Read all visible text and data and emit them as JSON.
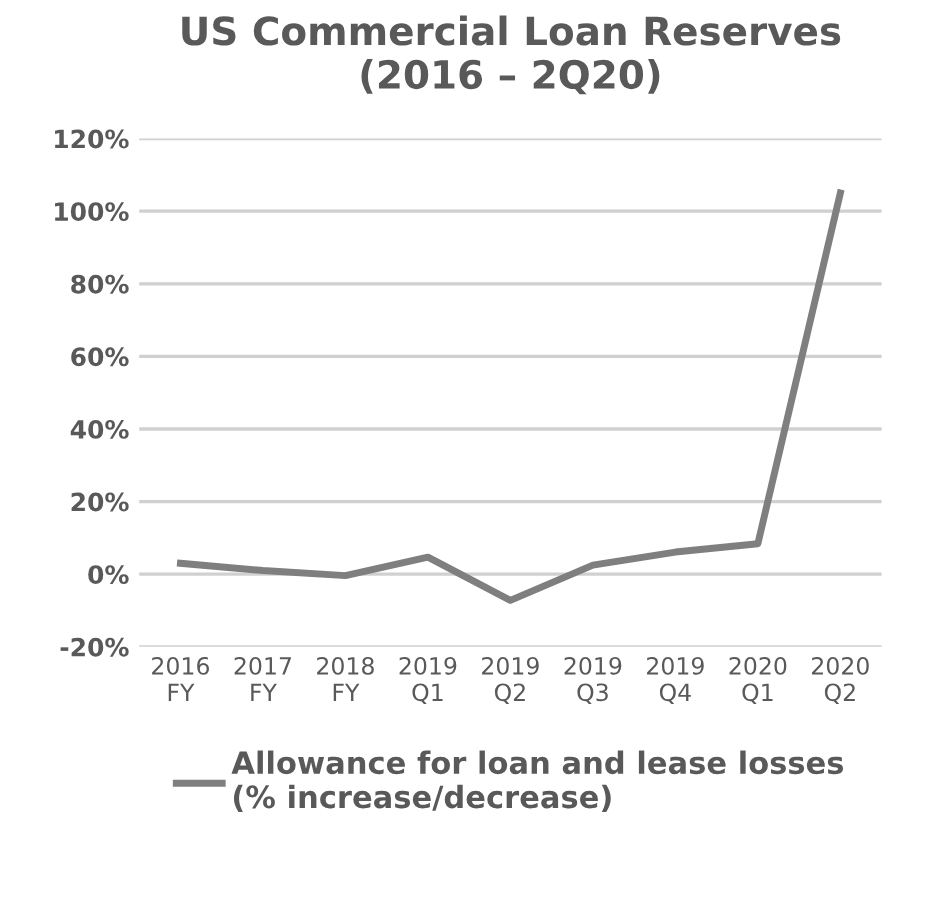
{
  "chart_data": {
    "type": "line",
    "title": "US Commercial Loan Reserves\n(2016 – 2Q20)",
    "categories": [
      "2016\nFY",
      "2017\nFY",
      "2018\nFY",
      "2019\nQ1",
      "2019\nQ2",
      "2019\nQ3",
      "2019\nQ4",
      "2020\nQ1",
      "2020\nQ2"
    ],
    "series": [
      {
        "name": "Allowance for loan and lease losses\n(% increase/decrease)",
        "color": "#7f7f7f",
        "values": [
          3,
          1,
          -0.4,
          4.7,
          -7.2,
          2.5,
          6.1,
          8.4,
          105
        ]
      }
    ],
    "ylim": [
      -20,
      120
    ],
    "yticks": [
      {
        "value": -20,
        "label": "-20%"
      },
      {
        "value": 0,
        "label": "0%"
      },
      {
        "value": 20,
        "label": "20%"
      },
      {
        "value": 40,
        "label": "40%"
      },
      {
        "value": 60,
        "label": "60%"
      },
      {
        "value": 80,
        "label": "80%"
      },
      {
        "value": 100,
        "label": "100%"
      },
      {
        "value": 120,
        "label": "120%"
      }
    ],
    "grid": "y",
    "legend": "bottom",
    "marker": "none",
    "line_style": "solid"
  }
}
